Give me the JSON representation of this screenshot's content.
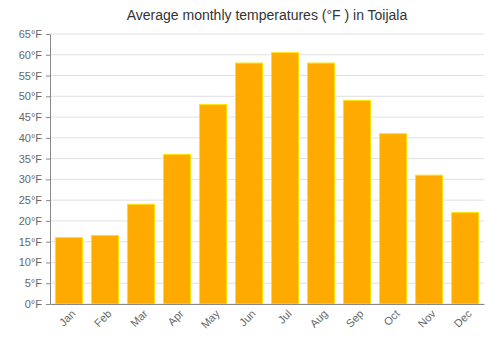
{
  "chart_data": {
    "type": "bar",
    "title": "Average monthly temperatures (°F ) in Toijala",
    "categories": [
      "Jan",
      "Feb",
      "Mar",
      "Apr",
      "May",
      "Jun",
      "Jul",
      "Aug",
      "Sep",
      "Oct",
      "Nov",
      "Dec"
    ],
    "values": [
      16,
      16.5,
      24,
      36,
      48,
      58,
      60.5,
      58,
      49,
      41,
      31,
      22
    ],
    "color": "#FFAA00",
    "ylim": [
      0,
      65
    ],
    "yticks": [
      {
        "value": 0,
        "label": "0°F"
      },
      {
        "value": 5,
        "label": "5°F"
      },
      {
        "value": 10,
        "label": "10°F"
      },
      {
        "value": 15,
        "label": "15°F"
      },
      {
        "value": 20,
        "label": "20°F"
      },
      {
        "value": 25,
        "label": "25°F"
      },
      {
        "value": 30,
        "label": "30°F"
      },
      {
        "value": 35,
        "label": "35°F"
      },
      {
        "value": 40,
        "label": "40°F"
      },
      {
        "value": 45,
        "label": "45°F"
      },
      {
        "value": 50,
        "label": "50°F"
      },
      {
        "value": 55,
        "label": "55°F"
      },
      {
        "value": 60,
        "label": "60°F"
      },
      {
        "value": 65,
        "label": "65°F"
      }
    ],
    "grid": true
  }
}
